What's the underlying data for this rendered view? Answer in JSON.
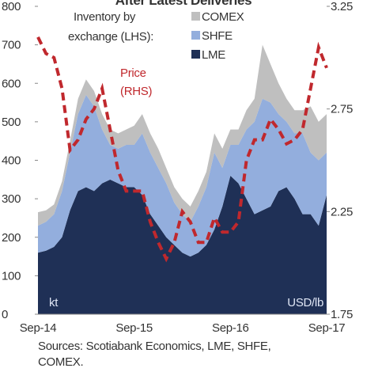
{
  "chart_data": {
    "type": "stacked-area-line",
    "title": "After Latest Deliveries",
    "legend_title": [
      "Inventory by",
      "exchange (LHS):"
    ],
    "price_label": [
      "Price",
      "(RHS)"
    ],
    "y_unit": "kt",
    "y2_unit": "USD/lb",
    "source": [
      "Sources: Scotiabank Economics, LME, SHFE,",
      "COMEX."
    ],
    "categories": [
      "Sep-14",
      null,
      null,
      null,
      null,
      null,
      null,
      null,
      null,
      null,
      null,
      null,
      "Sep-15",
      null,
      null,
      null,
      null,
      null,
      null,
      null,
      null,
      null,
      null,
      null,
      "Sep-16",
      null,
      null,
      null,
      null,
      null,
      null,
      null,
      null,
      null,
      null,
      null,
      "Sep-17"
    ],
    "ylim": [
      0,
      800
    ],
    "yticks": [
      0,
      100,
      200,
      300,
      400,
      500,
      600,
      700,
      800
    ],
    "y2lim": [
      1.75,
      3.25
    ],
    "y2ticks": [
      1.75,
      2.25,
      2.75,
      3.25
    ],
    "series": [
      {
        "name": "LME",
        "color": "#1f3056",
        "values": [
          160,
          165,
          175,
          200,
          270,
          320,
          330,
          320,
          340,
          350,
          340,
          330,
          330,
          310,
          260,
          230,
          200,
          180,
          160,
          150,
          160,
          180,
          220,
          280,
          360,
          340,
          300,
          260,
          270,
          280,
          320,
          330,
          300,
          260,
          260,
          230,
          310
        ]
      },
      {
        "name": "SHFE",
        "color": "#93aedd",
        "values": [
          70,
          75,
          85,
          120,
          150,
          200,
          240,
          220,
          140,
          90,
          90,
          110,
          110,
          160,
          160,
          150,
          140,
          110,
          100,
          90,
          120,
          150,
          200,
          100,
          80,
          100,
          180,
          240,
          290,
          270,
          200,
          170,
          170,
          210,
          160,
          170,
          110
        ]
      },
      {
        "name": "COMEX",
        "color": "#bfbfbf",
        "values": [
          35,
          30,
          25,
          25,
          30,
          40,
          40,
          40,
          40,
          40,
          40,
          40,
          50,
          50,
          50,
          50,
          40,
          40,
          40,
          40,
          40,
          40,
          50,
          50,
          40,
          40,
          50,
          60,
          140,
          100,
          80,
          60,
          60,
          60,
          120,
          100,
          100
        ]
      },
      {
        "name": "Price",
        "color": "#c0282d",
        "axis": "y2",
        "values": [
          3.1,
          3.02,
          3.0,
          2.85,
          2.55,
          2.6,
          2.7,
          2.75,
          2.85,
          2.65,
          2.45,
          2.35,
          2.35,
          2.35,
          2.2,
          2.1,
          2.02,
          2.1,
          2.25,
          2.2,
          2.1,
          2.1,
          2.22,
          2.15,
          2.15,
          2.2,
          2.5,
          2.6,
          2.6,
          2.7,
          2.65,
          2.58,
          2.6,
          2.65,
          2.85,
          3.05,
          2.95
        ]
      }
    ]
  }
}
